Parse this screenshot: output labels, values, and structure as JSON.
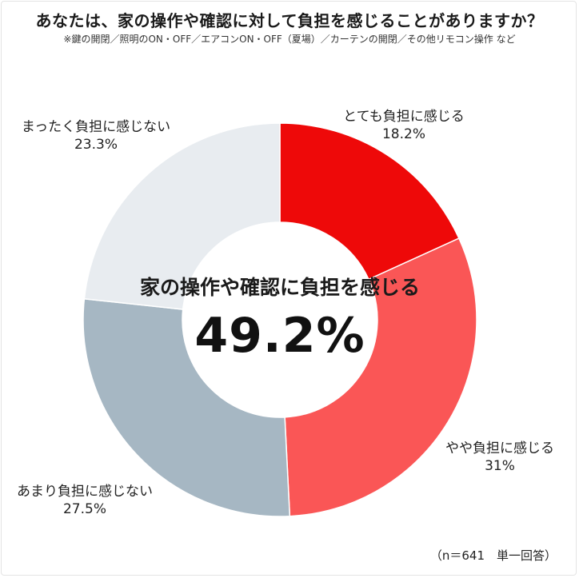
{
  "chart_data": {
    "type": "pie",
    "title": "あなたは、家の操作や確認に対して負担を感じることがありますか？",
    "subtitle": "※鍵の開閉／照明のON・OFF／エアコンON・OFF（夏場）／カーテンの開閉／その他リモコン操作 など",
    "slices": [
      {
        "label": "とても負担に感じる",
        "value": 18.2,
        "display": "18.2%",
        "color": "#ee0909"
      },
      {
        "label": "やや負担に感じる",
        "value": 31.0,
        "display": "31%",
        "color": "#fa5656"
      },
      {
        "label": "あまり負担に感じない",
        "value": 27.5,
        "display": "27.5%",
        "color": "#a6b7c3"
      },
      {
        "label": "まったく負担に感じない",
        "value": 23.3,
        "display": "23.3%",
        "color": "#e8ecf0"
      }
    ],
    "center_caption": "家の操作や確認に負担を感じる",
    "center_value": "49.2%",
    "note": "（n＝641　単一回答）"
  }
}
